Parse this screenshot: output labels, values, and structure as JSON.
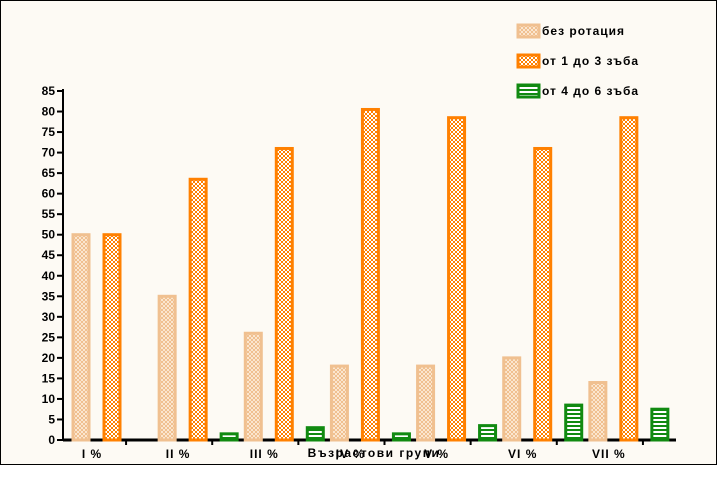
{
  "chart_data": {
    "type": "bar",
    "title": "",
    "xlabel": "Възрастови групи",
    "ylabel": "",
    "ylim": [
      0,
      85
    ],
    "yticks": [
      0,
      5,
      10,
      15,
      20,
      25,
      30,
      35,
      40,
      45,
      50,
      55,
      60,
      65,
      70,
      75,
      80,
      85
    ],
    "categories": [
      "I %",
      "II %",
      "III %",
      "IV %",
      "V %",
      "VI %",
      "VII %"
    ],
    "series": [
      {
        "name": "без ротация",
        "values": [
          50,
          35,
          26,
          18,
          18,
          20,
          14
        ],
        "color": "#f0c090",
        "pattern": "checker"
      },
      {
        "name": "от 1 до 3 зъба",
        "values": [
          50,
          63.5,
          71,
          80.5,
          78.5,
          71,
          78.5
        ],
        "color": "#ff8000",
        "pattern": "checker"
      },
      {
        "name": "от 4 до 6 зъба",
        "values": [
          0,
          1.5,
          3,
          1.5,
          3.5,
          8.5,
          7.5
        ],
        "color": "#118a11",
        "pattern": "stripes"
      }
    ],
    "legend_position": "top-right",
    "grid": false
  }
}
